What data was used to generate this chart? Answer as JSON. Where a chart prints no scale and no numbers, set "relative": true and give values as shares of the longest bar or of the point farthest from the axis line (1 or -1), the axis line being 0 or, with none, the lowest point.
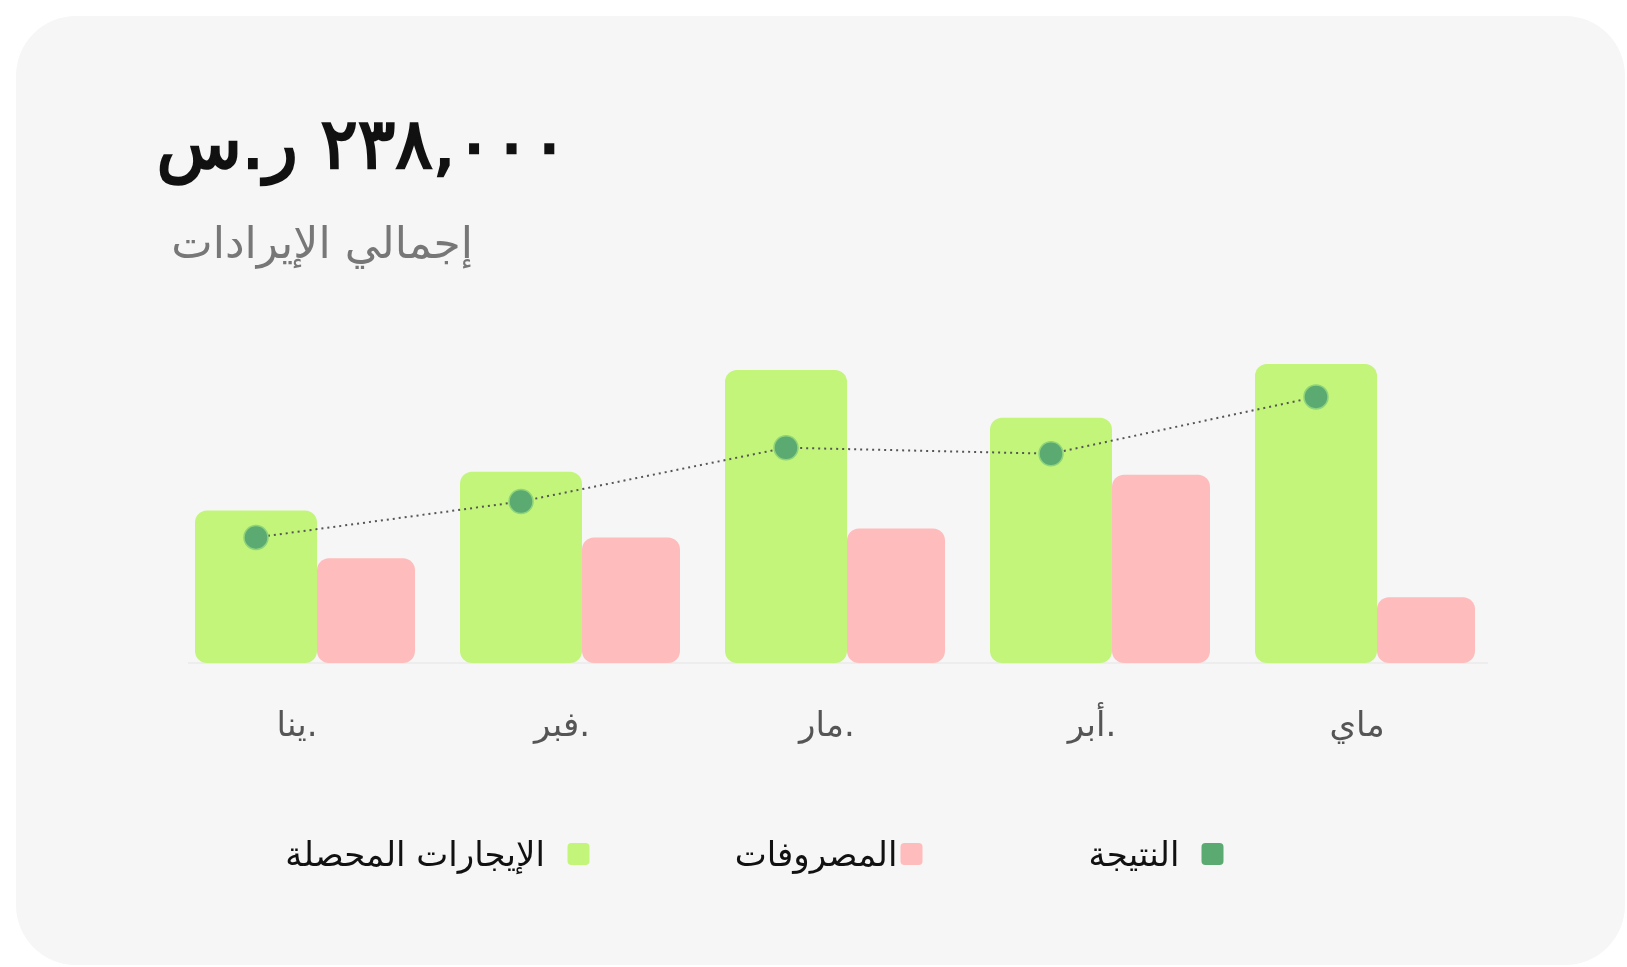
{
  "chart_data": {
    "type": "bar",
    "title": "٢٣٨,٠٠٠ ر.س",
    "subtitle": "إجمالي الإيرادات",
    "relative": true,
    "categories": [
      "ينا.",
      "فبر.",
      "مار.",
      "أبر.",
      "ماي"
    ],
    "legend": "bottom",
    "series": [
      {
        "name": "الإيجارات المحصلة",
        "color": "#c2f57a",
        "values": [
          0.51,
          0.64,
          0.98,
          0.82,
          1
        ]
      },
      {
        "name": "المصروفات",
        "color": "#ffbcbc",
        "values": [
          0.35,
          0.42,
          0.45,
          0.63,
          0.22
        ]
      },
      {
        "name": "النتيجة",
        "type": "line",
        "color": "#5aaa72",
        "line_style": "dotted",
        "marker": "circle",
        "values": [
          0.42,
          0.54,
          0.72,
          0.7,
          0.89
        ]
      }
    ]
  }
}
